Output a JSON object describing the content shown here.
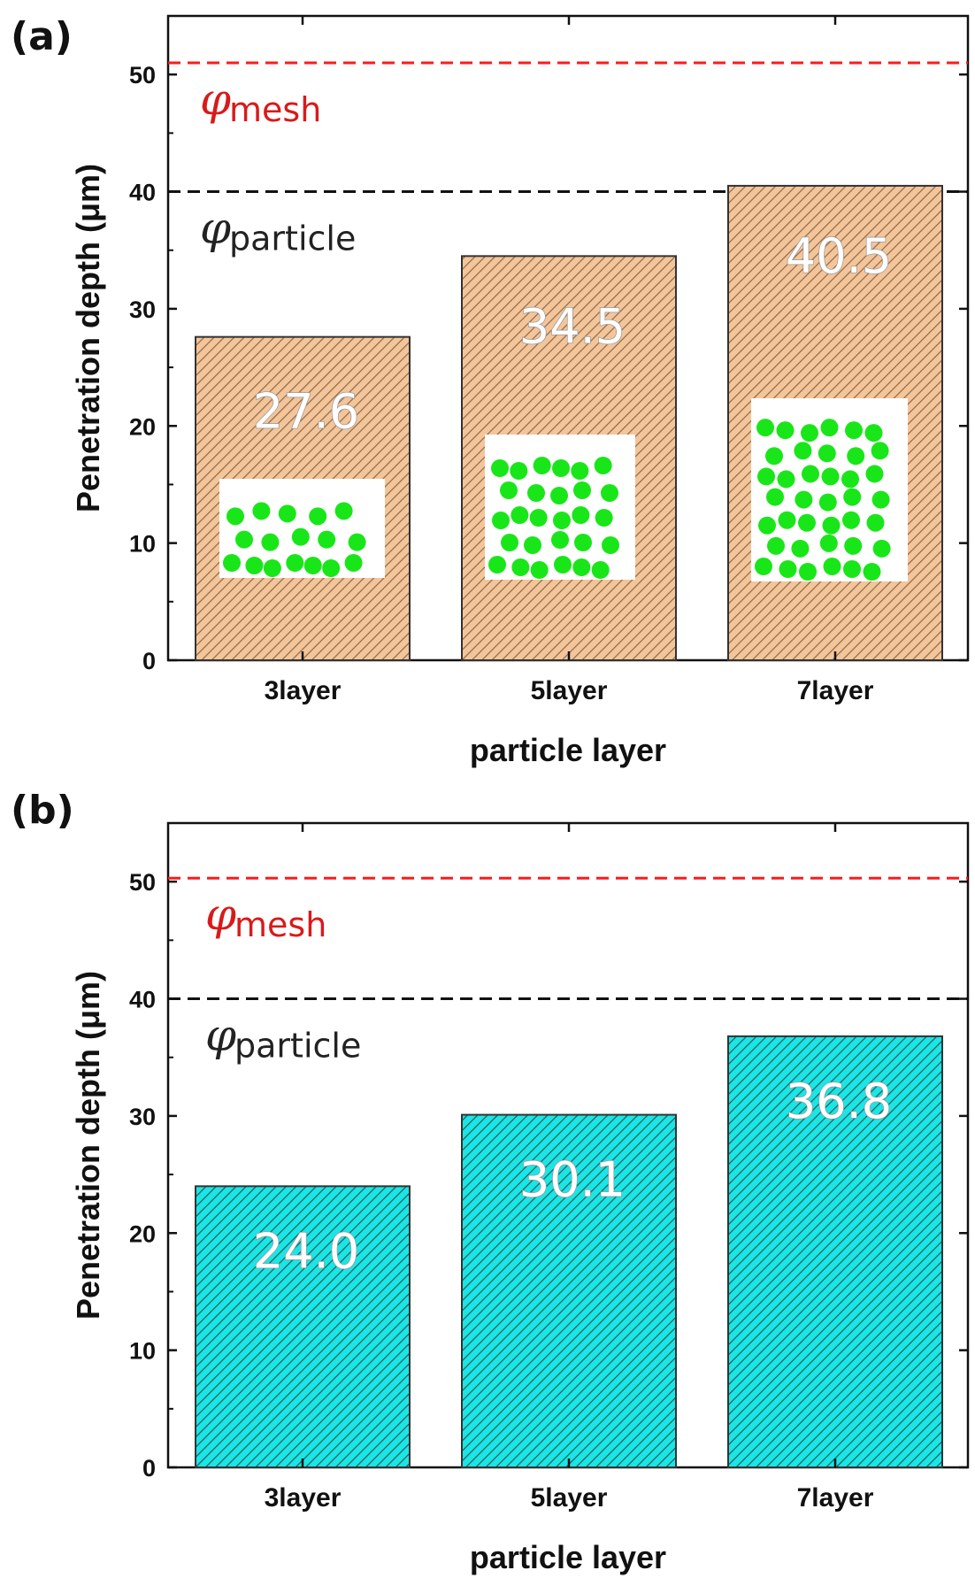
{
  "chart_data": [
    {
      "panel": "(a)",
      "type": "bar",
      "categories": [
        "3layer",
        "5layer",
        "7layer"
      ],
      "values": [
        27.6,
        34.5,
        40.5
      ],
      "value_labels": [
        "27.6",
        "34.5",
        "40.5"
      ],
      "xlabel": "particle layer",
      "ylabel": "Penetration depth (μm)",
      "ylim": [
        0,
        55
      ],
      "yticks": [
        0,
        10,
        20,
        30,
        40,
        50
      ],
      "bar_color": "#f5c59a",
      "hatch_color": "#8a6a4a",
      "reference_lines": [
        {
          "value": 51,
          "label_main": "φ",
          "label_sub": "mesh",
          "color": "#ff1a1a"
        },
        {
          "value": 40,
          "label_main": "φ",
          "label_sub": "particle",
          "color": "#111111"
        }
      ],
      "insets": {
        "description_icon": "particle-packing-icon",
        "particle_color": "#19e619",
        "layers": [
          3,
          5,
          7
        ]
      }
    },
    {
      "panel": "(b)",
      "type": "bar",
      "categories": [
        "3layer",
        "5layer",
        "7layer"
      ],
      "values": [
        24.0,
        30.1,
        36.8
      ],
      "value_labels": [
        "24.0",
        "30.1",
        "36.8"
      ],
      "xlabel": "particle layer",
      "ylabel": "Penetration depth (μm)",
      "ylim": [
        0,
        55
      ],
      "yticks": [
        0,
        10,
        20,
        30,
        40,
        50
      ],
      "bar_color": "#1ae6e6",
      "hatch_color": "#1a5a5a",
      "reference_lines": [
        {
          "value": 50.3,
          "label_main": "φ",
          "label_sub": "mesh",
          "color": "#ff1a1a"
        },
        {
          "value": 40,
          "label_main": "φ",
          "label_sub": "particle",
          "color": "#111111"
        }
      ]
    }
  ]
}
